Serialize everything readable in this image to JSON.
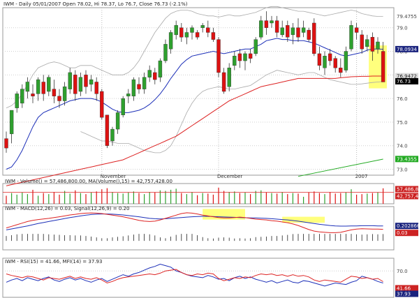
{
  "chart_data": {
    "type": "candlestick",
    "symbol": "IWM",
    "header_text": "IWM - Daily 05/01/2007 Open 78.02, Hi 78.37, Lo 76.7, Close 76.73 (-2.1%)",
    "header": {
      "date": "05/01/2007",
      "open": 78.02,
      "high": 78.37,
      "low": 76.7,
      "close": 76.73,
      "change_pct": -2.1
    },
    "x_labels": [
      {
        "text": "November",
        "index": 18
      },
      {
        "text": "December",
        "index": 40
      },
      {
        "text": "2007",
        "index": 66
      }
    ],
    "price_panel": {
      "ylim": [
        72.75,
        79.85
      ],
      "y_ticks": [
        79.0,
        78.0,
        77.0,
        76.0,
        75.0,
        74.0,
        73.0
      ],
      "y_tick_labels": [
        "79.0",
        "78.0",
        "77.0",
        "76.0",
        "75.0",
        "74.0",
        "73.0"
      ],
      "right_labels": [
        {
          "text": "79.4755",
          "value": 79.4755,
          "bg": "#ffffff",
          "color": "#444444"
        },
        {
          "text": "78.0934",
          "value": 78.0934,
          "bg": "#1a237e",
          "color": "#ffffff"
        },
        {
          "text": "76.9472",
          "value": 76.9472,
          "bg": "#dddddd",
          "color": "#222222"
        },
        {
          "text": "76.73",
          "value": 76.73,
          "bg": "#000000",
          "color": "#ffffff"
        },
        {
          "text": "73.4355",
          "value": 73.4355,
          "bg": "#22aa22",
          "color": "#ffffff"
        }
      ],
      "candles": [
        [
          74.3,
          73.9,
          74.6,
          73.7
        ],
        [
          74.5,
          75.5,
          75.5,
          74.1
        ],
        [
          75.6,
          76.2,
          76.3,
          75.4
        ],
        [
          75.8,
          76.4,
          76.6,
          75.6
        ],
        [
          76.3,
          76.7,
          76.9,
          76.0
        ],
        [
          76.2,
          76.1,
          76.6,
          75.8
        ],
        [
          76.2,
          76.8,
          76.9,
          75.9
        ],
        [
          76.7,
          76.2,
          77.0,
          75.9
        ],
        [
          76.3,
          76.9,
          77.0,
          76.1
        ],
        [
          76.4,
          76.1,
          76.8,
          75.8
        ],
        [
          76.1,
          75.9,
          76.4,
          75.6
        ],
        [
          75.9,
          76.5,
          76.7,
          75.7
        ],
        [
          76.4,
          77.1,
          77.3,
          76.2
        ],
        [
          77.0,
          76.2,
          77.2,
          75.9
        ],
        [
          76.3,
          76.9,
          77.1,
          76.1
        ],
        [
          77.0,
          76.5,
          77.2,
          76.2
        ],
        [
          76.6,
          76.8,
          77.0,
          76.3
        ],
        [
          76.7,
          76.2,
          76.9,
          75.9
        ],
        [
          76.3,
          75.2,
          76.4,
          75.1
        ],
        [
          75.3,
          74.0,
          75.3,
          73.9
        ],
        [
          74.2,
          74.7,
          74.8,
          74.0
        ],
        [
          74.7,
          75.4,
          75.5,
          74.5
        ],
        [
          75.3,
          76.0,
          76.1,
          75.2
        ],
        [
          76.1,
          76.2,
          76.4,
          75.8
        ],
        [
          76.1,
          76.8,
          76.9,
          75.9
        ],
        [
          76.6,
          76.4,
          76.9,
          76.2
        ],
        [
          76.4,
          76.9,
          77.1,
          76.2
        ],
        [
          76.9,
          77.2,
          77.4,
          76.7
        ],
        [
          77.1,
          76.8,
          77.3,
          76.6
        ],
        [
          76.9,
          77.6,
          77.7,
          76.7
        ],
        [
          77.6,
          78.3,
          78.5,
          77.5
        ],
        [
          78.1,
          78.8,
          78.9,
          77.9
        ],
        [
          78.7,
          79.1,
          79.3,
          78.5
        ],
        [
          79.0,
          78.6,
          79.2,
          78.4
        ],
        [
          78.6,
          78.8,
          79.0,
          78.3
        ],
        [
          78.8,
          79.0,
          79.1,
          78.5
        ],
        [
          78.8,
          78.6,
          78.9,
          78.5
        ],
        [
          79.0,
          79.1,
          79.2,
          78.8
        ],
        [
          79.0,
          78.8,
          79.3,
          78.6
        ],
        [
          78.8,
          78.5,
          79.0,
          78.4
        ],
        [
          78.5,
          77.1,
          78.6,
          76.9
        ],
        [
          77.1,
          76.3,
          77.3,
          76.2
        ],
        [
          76.5,
          77.3,
          77.5,
          76.3
        ],
        [
          77.4,
          77.8,
          78.0,
          77.2
        ],
        [
          77.9,
          77.6,
          78.1,
          77.3
        ],
        [
          77.6,
          77.9,
          78.0,
          77.2
        ],
        [
          77.9,
          77.7,
          78.1,
          77.5
        ],
        [
          77.9,
          78.5,
          78.6,
          77.8
        ],
        [
          78.6,
          79.3,
          79.5,
          78.5
        ],
        [
          79.3,
          79.0,
          79.7,
          78.7
        ],
        [
          79.2,
          79.3,
          79.5,
          79.0
        ],
        [
          79.3,
          78.8,
          79.5,
          78.6
        ],
        [
          78.7,
          79.0,
          79.3,
          78.6
        ],
        [
          79.1,
          78.6,
          79.3,
          78.4
        ],
        [
          78.7,
          79.0,
          79.2,
          78.3
        ],
        [
          79.0,
          78.6,
          79.4,
          78.4
        ],
        [
          78.8,
          79.0,
          79.3,
          78.6
        ],
        [
          78.9,
          78.5,
          79.0,
          78.4
        ],
        [
          79.2,
          77.9,
          79.4,
          77.8
        ],
        [
          77.9,
          77.4,
          78.2,
          77.2
        ],
        [
          77.3,
          77.8,
          78.0,
          77.0
        ],
        [
          77.9,
          77.6,
          78.1,
          77.4
        ],
        [
          77.7,
          77.3,
          77.8,
          77.1
        ],
        [
          77.3,
          77.1,
          77.7,
          76.9
        ],
        [
          77.2,
          78.0,
          78.2,
          77.1
        ],
        [
          78.1,
          79.1,
          79.3,
          78.0
        ],
        [
          79.0,
          78.8,
          79.2,
          78.5
        ],
        [
          78.7,
          78.1,
          78.9,
          77.9
        ],
        [
          78.2,
          78.5,
          78.7,
          78.0
        ],
        [
          78.6,
          78.0,
          78.8,
          77.6
        ],
        [
          78.1,
          78.4,
          78.6,
          77.9
        ],
        [
          78.0,
          76.7,
          78.4,
          76.7
        ]
      ],
      "sma20": [
        73.0,
        73.1,
        73.4,
        73.8,
        74.3,
        74.8,
        75.2,
        75.4,
        75.5,
        75.6,
        75.7,
        75.8,
        75.9,
        75.95,
        76.0,
        76.0,
        76.0,
        75.95,
        75.85,
        75.7,
        75.55,
        75.45,
        75.4,
        75.4,
        75.45,
        75.5,
        75.6,
        75.75,
        75.95,
        76.2,
        76.5,
        76.85,
        77.15,
        77.45,
        77.65,
        77.8,
        77.85,
        77.9,
        77.95,
        78.0,
        77.95,
        77.9,
        77.95,
        78.0,
        78.05,
        78.1,
        78.1,
        78.2,
        78.3,
        78.45,
        78.5,
        78.55,
        78.5,
        78.5,
        78.45,
        78.45,
        78.45,
        78.4,
        78.35,
        78.25,
        78.15,
        78.05,
        77.95,
        77.85,
        77.8,
        77.85,
        77.9,
        77.95,
        78.05,
        78.1,
        78.1,
        78.09
      ],
      "sma50": [
        72.3,
        72.35,
        72.4,
        72.45,
        72.5,
        72.55,
        72.6,
        72.65,
        72.7,
        72.75,
        72.8,
        72.85,
        72.9,
        72.95,
        73.0,
        73.05,
        73.1,
        73.15,
        73.2,
        73.25,
        73.3,
        73.35,
        73.4,
        73.5,
        73.6,
        73.7,
        73.8,
        73.9,
        74.0,
        74.1,
        74.2,
        74.3,
        74.4,
        74.55,
        74.7,
        74.85,
        75.0,
        75.15,
        75.3,
        75.45,
        75.6,
        75.75,
        75.9,
        76.0,
        76.1,
        76.2,
        76.3,
        76.4,
        76.5,
        76.55,
        76.6,
        76.65,
        76.7,
        76.75,
        76.8,
        76.85,
        76.85,
        76.85,
        76.85,
        76.85,
        76.85,
        76.85,
        76.85,
        76.88,
        76.9,
        76.92,
        76.93,
        76.94,
        76.94,
        76.95,
        76.95,
        76.95
      ],
      "bb_upper": [
        75.6,
        75.7,
        75.9,
        76.2,
        76.6,
        77.0,
        77.3,
        77.4,
        77.5,
        77.55,
        77.5,
        77.4,
        77.3,
        77.3,
        77.4,
        77.4,
        77.4,
        77.3,
        77.2,
        77.1,
        77.0,
        77.0,
        77.0,
        77.1,
        77.3,
        77.6,
        78.0,
        78.4,
        78.8,
        79.1,
        79.4,
        79.6,
        79.7,
        79.75,
        79.75,
        79.7,
        79.6,
        79.55,
        79.5,
        79.5,
        79.45,
        79.5,
        79.55,
        79.5,
        79.5,
        79.55,
        79.6,
        79.65,
        79.75,
        79.85,
        79.9,
        79.9,
        79.85,
        79.8,
        79.75,
        79.7,
        79.7,
        79.65,
        79.6,
        79.55,
        79.5,
        79.55,
        79.6,
        79.65,
        79.7,
        79.75,
        79.7,
        79.6,
        79.55,
        79.5,
        79.48,
        79.48
      ],
      "bb_lower": [
        70.8,
        71.0,
        71.4,
        71.8,
        72.3,
        72.8,
        73.3,
        73.7,
        74.0,
        74.2,
        74.4,
        74.5,
        74.6,
        74.6,
        74.6,
        74.5,
        74.4,
        74.3,
        74.2,
        74.2,
        74.15,
        74.1,
        74.1,
        74.1,
        74.0,
        73.9,
        73.8,
        73.75,
        73.7,
        73.7,
        73.8,
        74.0,
        74.4,
        74.9,
        75.4,
        75.8,
        76.1,
        76.3,
        76.4,
        76.45,
        76.5,
        76.45,
        76.4,
        76.4,
        76.45,
        76.5,
        76.55,
        76.7,
        76.85,
        77.0,
        77.1,
        77.2,
        77.15,
        77.1,
        77.05,
        77.0,
        77.05,
        77.1,
        77.1,
        77.0,
        76.9,
        76.8,
        76.75,
        76.7,
        76.65,
        76.6,
        76.6,
        76.62,
        76.65,
        76.68,
        76.7,
        76.72
      ],
      "bb_lower_start_index": 14,
      "green_line": {
        "from_index": 55,
        "from_value": 72.7,
        "to_index": 71,
        "to_value": 73.43
      },
      "highlight": {
        "from_index": 68.3,
        "to_index": 71.7,
        "y_top": 78.25,
        "y_bottom": 76.43,
        "color": "#ffff66"
      }
    },
    "volume_panel": {
      "label": "IWM - Volume() = 57,486,800.00, MA(Volume(),15) = 42,757,428.00",
      "ylim": [
        0,
        70000000
      ],
      "ma_level": 42757428,
      "volumes": [
        30,
        40,
        34,
        42,
        36,
        52,
        30,
        40,
        36,
        44,
        34,
        48,
        38,
        50,
        40,
        36,
        42,
        46,
        54,
        58,
        44,
        40,
        38,
        42,
        46,
        40,
        36,
        44,
        42,
        50,
        48,
        52,
        56,
        40,
        36,
        44,
        32,
        40,
        38,
        34,
        60,
        48,
        44,
        46,
        40,
        42,
        36,
        48,
        50,
        42,
        40,
        38,
        44,
        36,
        40,
        38,
        26,
        42,
        46,
        40,
        36,
        44,
        38,
        40,
        42,
        54,
        34,
        36,
        38,
        40,
        42,
        57.5
      ],
      "volumes_unit": "millions",
      "right_labels": [
        {
          "text": "57,486,800",
          "bg": "#cc2222",
          "color": "#ffffff"
        },
        {
          "text": "42,757,428",
          "bg": "#cc2222",
          "color": "#ffffff"
        }
      ]
    },
    "macd_panel": {
      "label": "IWM - MACD(12,26) = 0.03, Signal(12,26,9) = 0.20",
      "ylim": [
        -1.0,
        1.1
      ],
      "macd": [
        0.1,
        0.18,
        0.26,
        0.34,
        0.42,
        0.48,
        0.52,
        0.55,
        0.58,
        0.62,
        0.66,
        0.7,
        0.75,
        0.78,
        0.82,
        0.84,
        0.85,
        0.84,
        0.82,
        0.78,
        0.74,
        0.7,
        0.66,
        0.6,
        0.54,
        0.48,
        0.44,
        0.42,
        0.44,
        0.5,
        0.58,
        0.66,
        0.74,
        0.82,
        0.86,
        0.84,
        0.8,
        0.74,
        0.7,
        0.66,
        0.62,
        0.6,
        0.6,
        0.62,
        0.64,
        0.62,
        0.58,
        0.54,
        0.52,
        0.5,
        0.46,
        0.44,
        0.4,
        0.36,
        0.3,
        0.22,
        0.12,
        0.02,
        -0.06,
        -0.1,
        -0.12,
        -0.14,
        -0.14,
        -0.12,
        -0.06,
        0.0,
        0.04,
        0.06,
        0.05,
        0.04,
        0.04,
        0.03
      ],
      "signal": [
        0.0,
        0.05,
        0.1,
        0.15,
        0.2,
        0.26,
        0.32,
        0.37,
        0.42,
        0.47,
        0.52,
        0.57,
        0.62,
        0.66,
        0.7,
        0.74,
        0.77,
        0.79,
        0.8,
        0.8,
        0.79,
        0.77,
        0.75,
        0.72,
        0.69,
        0.66,
        0.62,
        0.58,
        0.56,
        0.55,
        0.56,
        0.58,
        0.6,
        0.62,
        0.64,
        0.66,
        0.67,
        0.68,
        0.68,
        0.67,
        0.66,
        0.65,
        0.64,
        0.63,
        0.62,
        0.61,
        0.6,
        0.6,
        0.59,
        0.58,
        0.56,
        0.54,
        0.52,
        0.5,
        0.47,
        0.44,
        0.4,
        0.36,
        0.32,
        0.28,
        0.25,
        0.22,
        0.2,
        0.19,
        0.19,
        0.2,
        0.2,
        0.21,
        0.21,
        0.21,
        0.2,
        0.2
      ],
      "highlights": [
        {
          "from_index": 37,
          "to_index": 45,
          "y_top": 1.05,
          "y_bottom": 0.52,
          "color": "#ffff66"
        },
        {
          "from_index": 52,
          "to_index": 60,
          "y_top": 0.66,
          "y_bottom": 0.36,
          "color": "#ffff66"
        }
      ],
      "right_labels": [
        {
          "text": "0.202866",
          "bg": "#1a237e",
          "color": "#ffffff"
        },
        {
          "text": "0.03",
          "bg": "#cc2222",
          "color": "#ffffff"
        }
      ]
    },
    "rsi_panel": {
      "label": "IWM - RSI(15) = 41.66, MFI(14) = 37.93",
      "ylim": [
        0,
        100
      ],
      "y_ticks": [
        70.0
      ],
      "y_tick_labels": [
        "70.0"
      ],
      "rsi": [
        62,
        58,
        55,
        52,
        56,
        54,
        50,
        46,
        52,
        50,
        48,
        52,
        56,
        50,
        54,
        50,
        48,
        52,
        46,
        38,
        42,
        48,
        52,
        54,
        56,
        58,
        60,
        62,
        60,
        64,
        70,
        72,
        74,
        66,
        60,
        58,
        62,
        60,
        64,
        62,
        50,
        44,
        48,
        52,
        50,
        54,
        52,
        58,
        62,
        60,
        62,
        58,
        60,
        56,
        60,
        56,
        58,
        54,
        46,
        42,
        46,
        44,
        42,
        40,
        48,
        56,
        54,
        50,
        52,
        48,
        50,
        41.66
      ],
      "mfi": [
        40,
        46,
        50,
        44,
        52,
        48,
        44,
        50,
        54,
        46,
        42,
        48,
        52,
        46,
        50,
        44,
        40,
        46,
        50,
        42,
        48,
        54,
        60,
        56,
        62,
        66,
        72,
        78,
        82,
        88,
        84,
        80,
        70,
        66,
        60,
        56,
        54,
        52,
        58,
        54,
        48,
        50,
        44,
        52,
        56,
        50,
        54,
        48,
        44,
        40,
        44,
        38,
        42,
        46,
        40,
        38,
        44,
        42,
        38,
        34,
        30,
        34,
        38,
        36,
        34,
        40,
        44,
        56,
        52,
        48,
        42,
        37.93
      ],
      "right_labels": [
        {
          "text": "41.66",
          "bg": "#cc2222",
          "color": "#ffffff"
        },
        {
          "text": "37.93",
          "bg": "#1a237e",
          "color": "#ffffff"
        }
      ]
    },
    "colors": {
      "up_candle": "#2ea02e",
      "down_candle": "#dd1111",
      "sma20": "#1c2fb8",
      "sma50": "#dd2222",
      "bands": "#aaaaaa",
      "green_line": "#22aa22",
      "grid": "#d0d0d0",
      "macd_line": "#dd2222",
      "signal_line": "#1c2fb8",
      "volume_up": "#2ea02e",
      "volume_down": "#dd1111",
      "volume_ma": "#dd2222",
      "rsi_line": "#dd2222",
      "mfi_line": "#1c2fb8"
    }
  }
}
